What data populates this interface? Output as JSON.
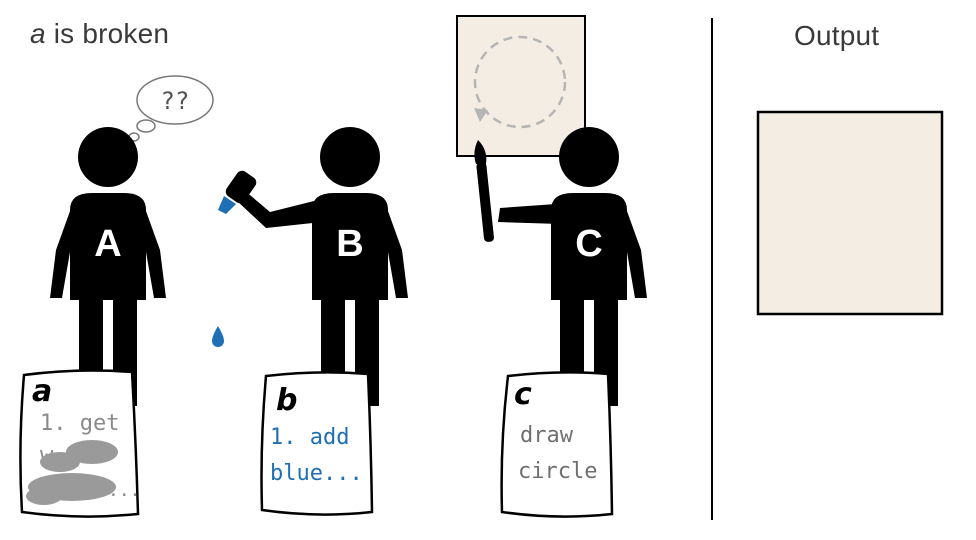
{
  "title": {
    "variable": "a",
    "rest": " is broken"
  },
  "output_label": "Output",
  "thought_bubble": "??",
  "figures": [
    {
      "letter": "A",
      "role": "broken-reader"
    },
    {
      "letter": "B",
      "role": "adds-blue"
    },
    {
      "letter": "C",
      "role": "draws-circle"
    }
  ],
  "notes": {
    "a": {
      "label": "a",
      "lines": [
        "1. get",
        "w",
        "..."
      ],
      "color": "#8a8a8a",
      "scribbled": true
    },
    "b": {
      "label": "b",
      "lines": [
        "1. add",
        "blue..."
      ],
      "color": "#1f6fb5"
    },
    "c": {
      "label": "c",
      "lines": [
        "draw",
        "circle"
      ],
      "color": "#707070"
    }
  },
  "colors": {
    "figure": "#000000",
    "canvas_fill": "#f4ede3",
    "paint_blue": "#1f6fb5",
    "scribble": "#9a9a9a",
    "dashed_circle": "#b5b5b5"
  }
}
